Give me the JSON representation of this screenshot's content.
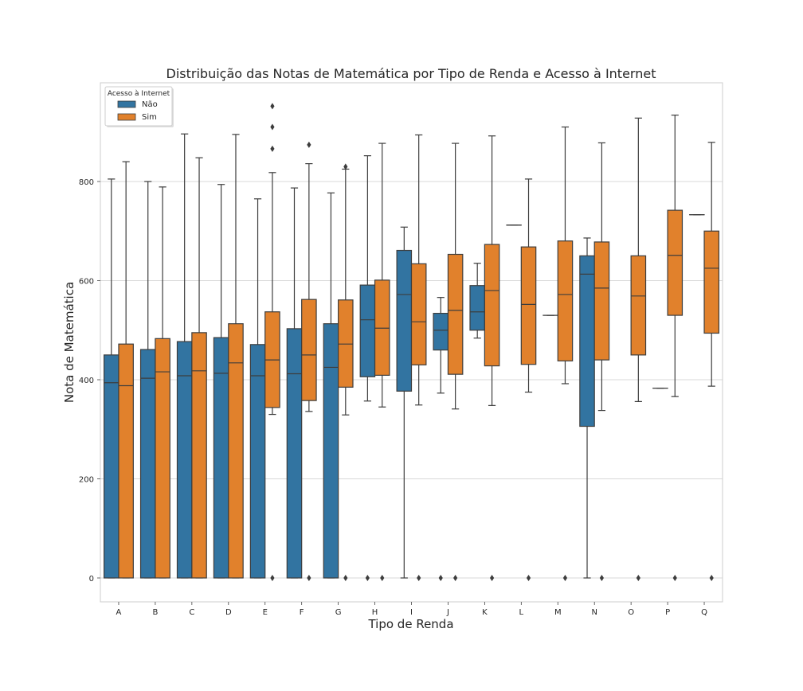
{
  "chart_data": {
    "type": "box",
    "title": "Distribuição das Notas de Matemática por Tipo de Renda e Acesso à Internet",
    "xlabel": "Tipo de Renda",
    "ylabel": "Nota de Matemática",
    "ylim": [
      -48,
      995
    ],
    "yticks": [
      0,
      200,
      400,
      600,
      800
    ],
    "grid": true,
    "legend": {
      "title": "Acesso à Internet",
      "position": "top-left"
    },
    "categories": [
      "A",
      "B",
      "C",
      "D",
      "E",
      "F",
      "G",
      "H",
      "I",
      "J",
      "K",
      "L",
      "M",
      "N",
      "O",
      "P",
      "Q"
    ],
    "series": [
      {
        "name": "Não",
        "color": "#3274a1",
        "boxes": [
          {
            "category": "A",
            "whislo": 0,
            "q1": 0,
            "median": 394,
            "q3": 450,
            "whishi": 805,
            "fliers": []
          },
          {
            "category": "B",
            "whislo": 0,
            "q1": 0,
            "median": 403,
            "q3": 461,
            "whishi": 800,
            "fliers": []
          },
          {
            "category": "C",
            "whislo": 0,
            "q1": 0,
            "median": 408,
            "q3": 477,
            "whishi": 896,
            "fliers": []
          },
          {
            "category": "D",
            "whislo": 0,
            "q1": 0,
            "median": 413,
            "q3": 485,
            "whishi": 794,
            "fliers": []
          },
          {
            "category": "E",
            "whislo": 0,
            "q1": 0,
            "median": 408,
            "q3": 471,
            "whishi": 765,
            "fliers": []
          },
          {
            "category": "F",
            "whislo": 0,
            "q1": 0,
            "median": 412,
            "q3": 503,
            "whishi": 787,
            "fliers": []
          },
          {
            "category": "G",
            "whislo": 0,
            "q1": 0,
            "median": 425,
            "q3": 513,
            "whishi": 777,
            "fliers": []
          },
          {
            "category": "H",
            "whislo": 357,
            "q1": 406,
            "median": 521,
            "q3": 591,
            "whishi": 852,
            "fliers": [
              0
            ]
          },
          {
            "category": "I",
            "whislo": 0,
            "q1": 377,
            "median": 572,
            "q3": 661,
            "whishi": 708,
            "fliers": []
          },
          {
            "category": "J",
            "whislo": 373,
            "q1": 460,
            "median": 500,
            "q3": 534,
            "whishi": 566,
            "fliers": [
              0
            ]
          },
          {
            "category": "K",
            "whislo": 484,
            "q1": 500,
            "median": 537,
            "q3": 590,
            "whishi": 635,
            "fliers": []
          },
          {
            "category": "L",
            "whislo": 712,
            "q1": 712,
            "median": 712,
            "q3": 712,
            "whishi": 712,
            "fliers": []
          },
          {
            "category": "M",
            "whislo": 530,
            "q1": 530,
            "median": 530,
            "q3": 530,
            "whishi": 530,
            "fliers": []
          },
          {
            "category": "N",
            "whislo": 0,
            "q1": 306,
            "median": 613,
            "q3": 650,
            "whishi": 686,
            "fliers": []
          },
          {
            "category": "P",
            "whislo": 383,
            "q1": 383,
            "median": 383,
            "q3": 383,
            "whishi": 383,
            "fliers": []
          },
          {
            "category": "Q",
            "whislo": 733,
            "q1": 733,
            "median": 733,
            "q3": 733,
            "whishi": 733,
            "fliers": []
          }
        ]
      },
      {
        "name": "Sim",
        "color": "#e1812c",
        "boxes": [
          {
            "category": "A",
            "whislo": 0,
            "q1": 0,
            "median": 388,
            "q3": 472,
            "whishi": 840,
            "fliers": []
          },
          {
            "category": "B",
            "whislo": 0,
            "q1": 0,
            "median": 416,
            "q3": 483,
            "whishi": 789,
            "fliers": []
          },
          {
            "category": "C",
            "whislo": 0,
            "q1": 0,
            "median": 418,
            "q3": 495,
            "whishi": 848,
            "fliers": []
          },
          {
            "category": "D",
            "whislo": 0,
            "q1": 0,
            "median": 434,
            "q3": 513,
            "whishi": 895,
            "fliers": []
          },
          {
            "category": "E",
            "whislo": 330,
            "q1": 344,
            "median": 440,
            "q3": 537,
            "whishi": 818,
            "fliers": [
              0,
              866,
              910,
              952
            ]
          },
          {
            "category": "F",
            "whislo": 336,
            "q1": 358,
            "median": 450,
            "q3": 562,
            "whishi": 836,
            "fliers": [
              0,
              874
            ]
          },
          {
            "category": "G",
            "whislo": 329,
            "q1": 385,
            "median": 472,
            "q3": 561,
            "whishi": 825,
            "fliers": [
              0,
              830
            ]
          },
          {
            "category": "H",
            "whislo": 345,
            "q1": 409,
            "median": 504,
            "q3": 601,
            "whishi": 877,
            "fliers": [
              0
            ]
          },
          {
            "category": "I",
            "whislo": 349,
            "q1": 430,
            "median": 517,
            "q3": 634,
            "whishi": 894,
            "fliers": [
              0
            ]
          },
          {
            "category": "J",
            "whislo": 341,
            "q1": 411,
            "median": 540,
            "q3": 653,
            "whishi": 877,
            "fliers": [
              0
            ]
          },
          {
            "category": "K",
            "whislo": 348,
            "q1": 428,
            "median": 580,
            "q3": 673,
            "whishi": 892,
            "fliers": [
              0
            ]
          },
          {
            "category": "L",
            "whislo": 375,
            "q1": 431,
            "median": 552,
            "q3": 668,
            "whishi": 805,
            "fliers": [
              0
            ]
          },
          {
            "category": "M",
            "whislo": 392,
            "q1": 438,
            "median": 572,
            "q3": 680,
            "whishi": 910,
            "fliers": [
              0
            ]
          },
          {
            "category": "N",
            "whislo": 338,
            "q1": 440,
            "median": 585,
            "q3": 678,
            "whishi": 878,
            "fliers": [
              0
            ]
          },
          {
            "category": "O",
            "whislo": 356,
            "q1": 450,
            "median": 569,
            "q3": 650,
            "whishi": 928,
            "fliers": [
              0
            ]
          },
          {
            "category": "P",
            "whislo": 366,
            "q1": 530,
            "median": 651,
            "q3": 742,
            "whishi": 934,
            "fliers": [
              0
            ]
          },
          {
            "category": "Q",
            "whislo": 387,
            "q1": 494,
            "median": 625,
            "q3": 700,
            "whishi": 879,
            "fliers": [
              0
            ]
          }
        ]
      }
    ]
  }
}
